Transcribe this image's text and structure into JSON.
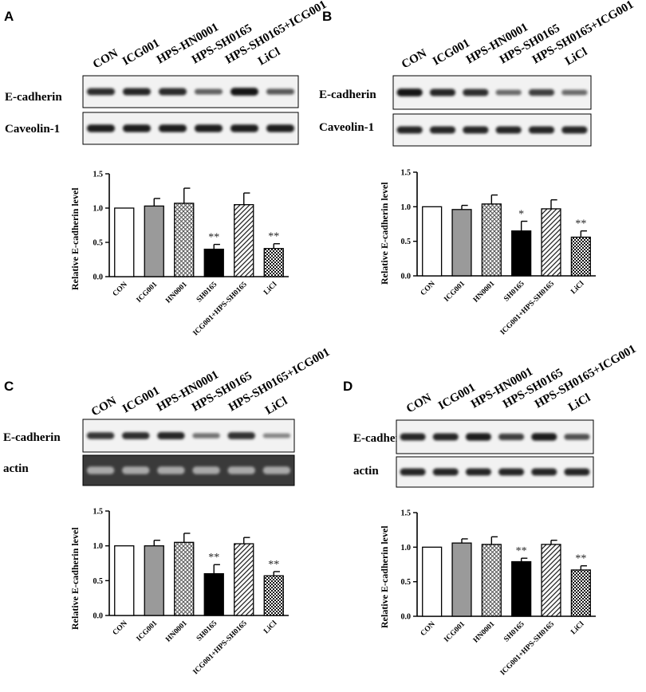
{
  "colors": {
    "background": "#ffffff",
    "gray_bar": "#9a9a9a",
    "black_bar": "#000000",
    "blot_light": "#f2f2f2",
    "blot_dark": "#3a3a3a"
  },
  "lane_labels": [
    "CON",
    "ICG001",
    "HPS-HN0001",
    "HPS-SH0165",
    "HPS-SH0165+ICG001",
    "LiCl"
  ],
  "categories": [
    "CON",
    "ICG001",
    "HN0001",
    "SH0165",
    "ICG001+HPS-SH0165",
    "LiCl"
  ],
  "bar_styles": [
    "white",
    "gray",
    "crosshatch",
    "black",
    "diagonal",
    "checker"
  ],
  "panels": [
    {
      "letter": "A",
      "blot_rows": [
        {
          "protein": "E-cadherin",
          "style": "light",
          "intensities": [
            0.8,
            0.85,
            0.82,
            0.5,
            0.95,
            0.55
          ]
        },
        {
          "protein": "Caveolin-1",
          "style": "light",
          "intensities": [
            0.9,
            0.9,
            0.9,
            0.9,
            0.9,
            0.9
          ]
        }
      ]
    },
    {
      "letter": "B",
      "blot_rows": [
        {
          "protein": "E-cadherin",
          "style": "light",
          "intensities": [
            0.95,
            0.85,
            0.8,
            0.45,
            0.7,
            0.45
          ]
        },
        {
          "protein": "Caveolin-1",
          "style": "light",
          "intensities": [
            0.85,
            0.85,
            0.85,
            0.85,
            0.85,
            0.85
          ]
        }
      ]
    },
    {
      "letter": "C",
      "blot_rows": [
        {
          "protein": "E-cadherin",
          "style": "light",
          "intensities": [
            0.75,
            0.8,
            0.85,
            0.4,
            0.78,
            0.3
          ]
        },
        {
          "protein": "actin",
          "style": "dark",
          "intensities": [
            0.9,
            0.9,
            0.9,
            0.9,
            0.9,
            0.9
          ]
        }
      ]
    },
    {
      "letter": "D",
      "blot_rows": [
        {
          "protein": "E-cadherin",
          "style": "light",
          "intensities": [
            0.85,
            0.85,
            0.9,
            0.7,
            0.9,
            0.6
          ]
        },
        {
          "protein": "actin",
          "style": "light",
          "intensities": [
            0.85,
            0.85,
            0.85,
            0.85,
            0.85,
            0.85
          ]
        }
      ]
    }
  ],
  "chart_data": [
    {
      "panel": "A",
      "type": "bar",
      "categories": [
        "CON",
        "ICG001",
        "HN0001",
        "SH0165",
        "ICG001+HPS-SH0165",
        "LiCl"
      ],
      "values": [
        1.0,
        1.03,
        1.07,
        0.4,
        1.05,
        0.41
      ],
      "errors": [
        0.0,
        0.11,
        0.22,
        0.07,
        0.17,
        0.07
      ],
      "annotations": [
        "",
        "",
        "",
        "**",
        "",
        "**"
      ],
      "ylabel": "Relative E-cadherin level",
      "ylim": [
        0,
        1.5
      ],
      "yticks": [
        "0.0",
        "0.5",
        "1.0",
        "1.5"
      ]
    },
    {
      "panel": "B",
      "type": "bar",
      "categories": [
        "CON",
        "ICG001",
        "HN0001",
        "SH0165",
        "ICG001+HPS-SH0165",
        "LiCl"
      ],
      "values": [
        1.0,
        0.96,
        1.04,
        0.65,
        0.97,
        0.56
      ],
      "errors": [
        0.0,
        0.06,
        0.13,
        0.14,
        0.13,
        0.09
      ],
      "annotations": [
        "",
        "",
        "",
        "*",
        "",
        "**"
      ],
      "ylabel": "Relative E-cadherin level",
      "ylim": [
        0,
        1.5
      ],
      "yticks": [
        "0.0",
        "0.5",
        "1.0",
        "1.5"
      ]
    },
    {
      "panel": "C",
      "type": "bar",
      "categories": [
        "CON",
        "ICG001",
        "HN0001",
        "SH0165",
        "ICG001+HPS-SH0165",
        "LiCl"
      ],
      "values": [
        1.0,
        1.0,
        1.05,
        0.6,
        1.03,
        0.57
      ],
      "errors": [
        0.0,
        0.08,
        0.13,
        0.13,
        0.09,
        0.06
      ],
      "annotations": [
        "",
        "",
        "",
        "**",
        "",
        "**"
      ],
      "ylabel": "Relative E-cadherin level",
      "ylim": [
        0,
        1.5
      ],
      "yticks": [
        "0.0",
        "0.5",
        "1.0",
        "1.5"
      ]
    },
    {
      "panel": "D",
      "type": "bar",
      "categories": [
        "CON",
        "ICG001",
        "HN0001",
        "SH0165",
        "ICG001+HPS-SH0165",
        "LiCl"
      ],
      "values": [
        1.0,
        1.06,
        1.04,
        0.79,
        1.04,
        0.67
      ],
      "errors": [
        0.0,
        0.06,
        0.11,
        0.05,
        0.06,
        0.06
      ],
      "annotations": [
        "",
        "",
        "",
        "**",
        "",
        "**"
      ],
      "ylabel": "Relative E-cadherin level",
      "ylim": [
        0,
        1.5
      ],
      "yticks": [
        "0.0",
        "0.5",
        "1.0",
        "1.5"
      ]
    }
  ]
}
